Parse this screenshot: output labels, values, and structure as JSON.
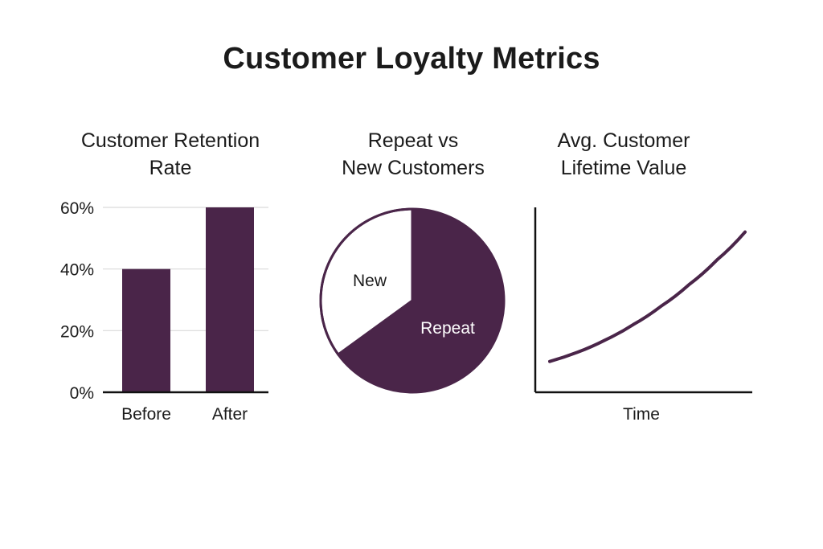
{
  "title": "Customer Loyalty Metrics",
  "colors": {
    "accent": "#4a2549",
    "axis": "#111111",
    "grid": "#d9d9d9",
    "background": "#ffffff"
  },
  "chart_data": [
    {
      "type": "bar",
      "title_lines": [
        "Customer Retention",
        "Rate"
      ],
      "categories": [
        "Before",
        "After"
      ],
      "values": [
        40,
        60
      ],
      "unit": "%",
      "yticks": [
        "0%",
        "20%",
        "40%",
        "60%"
      ],
      "ylim": [
        0,
        60
      ],
      "grid": true
    },
    {
      "type": "pie",
      "title_lines": [
        "Repeat vs",
        "New Customers"
      ],
      "slices": [
        {
          "label": "Repeat",
          "value": 65
        },
        {
          "label": "New",
          "value": 35
        }
      ]
    },
    {
      "type": "line",
      "title_lines": [
        "Avg. Customer",
        "Lifetime Value"
      ],
      "xlabel": "Time",
      "series": [
        {
          "values": [
            10,
            13,
            17,
            22,
            28,
            35,
            43,
            52
          ]
        }
      ]
    }
  ]
}
